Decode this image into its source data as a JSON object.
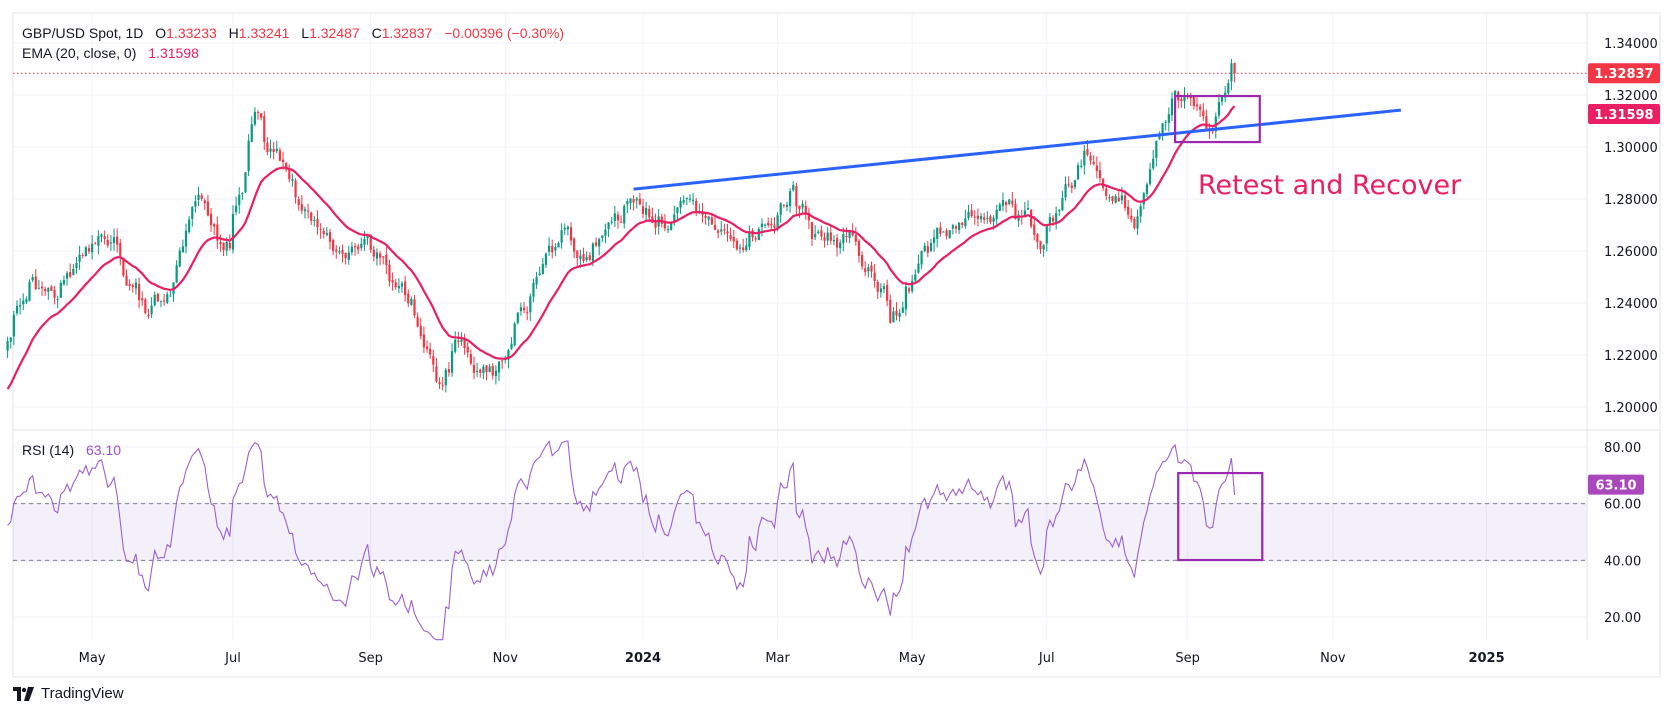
{
  "header": {
    "symbol": "GBP/USD Spot, 1D",
    "open_label": "O",
    "open": "1.33233",
    "high_label": "H",
    "high": "1.33241",
    "low_label": "L",
    "low": "1.32487",
    "close_label": "C",
    "close": "1.32837",
    "change": "−0.00396 (−0.30%)"
  },
  "ema_legend": {
    "label": "EMA (20, close, 0)",
    "value": "1.31598"
  },
  "rsi_legend": {
    "label": "RSI (14)",
    "value": "63.10"
  },
  "price_badges": {
    "last": "1.32837",
    "ema": "1.31598",
    "rsi": "63.10"
  },
  "annotation": "Retest and Recover",
  "footer": {
    "brand": "TradingView"
  },
  "colors": {
    "up": "#089981",
    "down": "#f23645",
    "ema": "#e91e63",
    "trendline": "#2962ff",
    "box": "#9c27b0",
    "rsi": "#9c5fd0",
    "annotation": "#e91e63"
  },
  "chart_data": {
    "type": "candlestick",
    "title": "GBP/USD Spot, 1D",
    "price_axis": {
      "ylim": [
        1.19,
        1.345
      ],
      "ticks": [
        "1.20000",
        "1.22000",
        "1.24000",
        "1.26000",
        "1.28000",
        "1.30000",
        "1.32000",
        "1.34000"
      ]
    },
    "rsi_axis": {
      "ylim": [
        10,
        85
      ],
      "ticks": [
        "20.00",
        "40.00",
        "60.00",
        "80.00"
      ],
      "band": [
        40,
        60
      ]
    },
    "x_ticks": [
      {
        "label": "May",
        "date": "2023-05-01",
        "bold": false
      },
      {
        "label": "Jul",
        "date": "2023-07-03",
        "bold": false
      },
      {
        "label": "Sep",
        "date": "2023-09-01",
        "bold": false
      },
      {
        "label": "Nov",
        "date": "2023-11-01",
        "bold": false
      },
      {
        "label": "2024",
        "date": "2024-01-02",
        "bold": true
      },
      {
        "label": "Mar",
        "date": "2024-03-01",
        "bold": false
      },
      {
        "label": "May",
        "date": "2024-05-01",
        "bold": false
      },
      {
        "label": "Jul",
        "date": "2024-07-01",
        "bold": false
      },
      {
        "label": "Sep",
        "date": "2024-09-02",
        "bold": false
      },
      {
        "label": "Nov",
        "date": "2024-11-01",
        "bold": false
      },
      {
        "label": "2025",
        "date": "2025-01-01",
        "bold": true
      }
    ],
    "start_date": "2023-03-23",
    "key_closes": [
      [
        "2023-03-23",
        1.222
      ],
      [
        "2023-04-04",
        1.245
      ],
      [
        "2023-04-14",
        1.243
      ],
      [
        "2023-04-28",
        1.255
      ],
      [
        "2023-05-10",
        1.262
      ],
      [
        "2023-05-25",
        1.235
      ],
      [
        "2023-06-05",
        1.245
      ],
      [
        "2023-06-16",
        1.28
      ],
      [
        "2023-06-30",
        1.265
      ],
      [
        "2023-07-13",
        1.312
      ],
      [
        "2023-07-27",
        1.285
      ],
      [
        "2023-08-10",
        1.27
      ],
      [
        "2023-08-25",
        1.26
      ],
      [
        "2023-09-05",
        1.255
      ],
      [
        "2023-09-20",
        1.238
      ],
      [
        "2023-10-03",
        1.208
      ],
      [
        "2023-10-11",
        1.228
      ],
      [
        "2023-10-20",
        1.216
      ],
      [
        "2023-11-01",
        1.215
      ],
      [
        "2023-11-14",
        1.245
      ],
      [
        "2023-11-28",
        1.268
      ],
      [
        "2023-12-08",
        1.255
      ],
      [
        "2023-12-27",
        1.277
      ],
      [
        "2024-01-12",
        1.275
      ],
      [
        "2024-01-31",
        1.27
      ],
      [
        "2024-02-14",
        1.258
      ],
      [
        "2024-03-08",
        1.285
      ],
      [
        "2024-03-22",
        1.262
      ],
      [
        "2024-04-05",
        1.263
      ],
      [
        "2024-04-22",
        1.235
      ],
      [
        "2024-05-03",
        1.252
      ],
      [
        "2024-05-20",
        1.27
      ],
      [
        "2024-06-12",
        1.28
      ],
      [
        "2024-06-28",
        1.264
      ],
      [
        "2024-07-17",
        1.3
      ],
      [
        "2024-08-05",
        1.276
      ],
      [
        "2024-08-08",
        1.27
      ],
      [
        "2024-08-20",
        1.3
      ],
      [
        "2024-08-27",
        1.322
      ],
      [
        "2024-09-11",
        1.305
      ],
      [
        "2024-09-17",
        1.318
      ],
      [
        "2024-09-20",
        1.332
      ],
      [
        "2024-09-23",
        1.32837
      ]
    ],
    "last_bar": {
      "date": "2024-09-23",
      "open": 1.33233,
      "high": 1.33241,
      "low": 1.32487,
      "close": 1.32837
    },
    "ema_period": 20,
    "ema_last": 1.31598,
    "rsi_period": 14,
    "rsi_last": 63.1,
    "trendline": {
      "start": [
        "2023-12-28",
        1.2838
      ],
      "end": [
        "2024-11-28",
        1.3142
      ]
    },
    "price_box": {
      "from": "2024-08-27",
      "to": "2024-10-03",
      "top": 1.3196,
      "bottom": 1.3019
    },
    "rsi_box": {
      "from": "2024-08-28",
      "to": "2024-10-04",
      "top": 70.8,
      "bottom": 40.1
    }
  }
}
